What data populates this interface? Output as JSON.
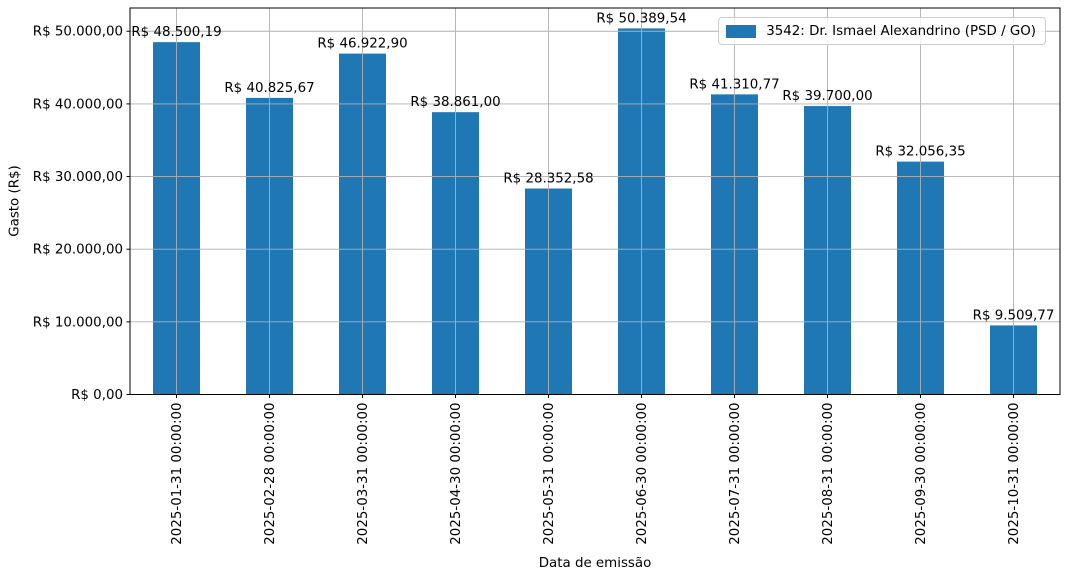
{
  "figure": {
    "background": "#ffffff"
  },
  "chart_data": {
    "type": "bar",
    "title": "",
    "xlabel": "Data de emissão",
    "ylabel": "Gasto (R$)",
    "categories": [
      "2025-01-31 00:00:00",
      "2025-02-28 00:00:00",
      "2025-03-31 00:00:00",
      "2025-04-30 00:00:00",
      "2025-05-31 00:00:00",
      "2025-06-30 00:00:00",
      "2025-07-31 00:00:00",
      "2025-08-31 00:00:00",
      "2025-09-30 00:00:00",
      "2025-10-31 00:00:00"
    ],
    "values": [
      48500.19,
      40825.67,
      46922.9,
      38861.0,
      28352.58,
      50389.54,
      41310.77,
      39700.0,
      32056.35,
      9509.77
    ],
    "bar_labels": [
      "R$ 48.500,19",
      "R$ 40.825,67",
      "R$ 46.922,90",
      "R$ 38.861,00",
      "R$ 28.352,58",
      "R$ 50.389,54",
      "R$ 41.310,77",
      "R$ 39.700,00",
      "R$ 32.056,35",
      "R$ 9.509,77"
    ],
    "yticks": [
      0,
      10000,
      20000,
      30000,
      40000,
      50000
    ],
    "ytick_labels": [
      "R$ 0,00",
      "R$ 10.000,00",
      "R$ 20.000,00",
      "R$ 30.000,00",
      "R$ 40.000,00",
      "R$ 50.000,00"
    ],
    "ylim": [
      0,
      53200
    ],
    "grid": true,
    "legend": {
      "label": "3542: Dr. Ismael Alexandrino (PSD / GO)",
      "position": "upper-right"
    },
    "colors": {
      "bar": "#1f77b4",
      "grid": "#b0b0b0",
      "axis": "#000000",
      "text": "#000000",
      "legend_border": "#cccccc",
      "background": "#ffffff"
    }
  }
}
